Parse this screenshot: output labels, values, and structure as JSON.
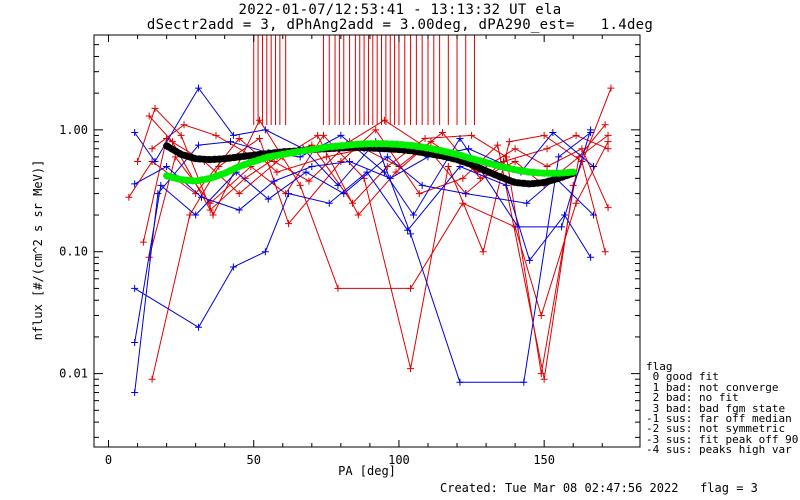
{
  "title_line1": "2022-01-07/12:53:41 - 13:13:32 UT ela",
  "title_line2": "dSectr2add = 3, dPhAng2add = 3.00deg, dPA290_est=   1.4deg",
  "footer": "Created: Tue Mar 08 02:47:56 2022   flag = 3",
  "legend": {
    "title": "flag",
    "items": [
      " 0 good fit",
      " 1 bad: not converge",
      " 2 bad: no fit",
      " 3 bad: bad fgm state",
      "-1 sus: far off median",
      "-2 sus: not symmetric",
      "-3 sus: fit peak off 90",
      "-4 sus: peaks high var"
    ]
  },
  "colors": {
    "red": "#e00000",
    "blue": "#0000e0",
    "green": "#00ee00",
    "black": "#000000"
  },
  "chart_data": {
    "type": "line",
    "xlabel": "PA [deg]",
    "ylabel": "nflux [#/(cm^2 s sr MeV)]",
    "xlim": [
      -5,
      183
    ],
    "ylim": [
      0.0025,
      6.0
    ],
    "yscale": "log",
    "x_ticks": [
      "0",
      "50",
      "100",
      "150"
    ],
    "x_tick_values": [
      0,
      50,
      100,
      150
    ],
    "y_ticks": [
      "0.01",
      "0.10",
      "1.00"
    ],
    "y_tick_values": [
      0.01,
      0.1,
      1.0
    ],
    "series": [
      {
        "color": "red",
        "x": [
          7,
          15,
          30,
          45,
          58,
          75,
          88,
          100,
          115,
          128,
          140,
          150,
          162,
          172
        ],
        "y": [
          0.28,
          0.55,
          0.3,
          0.85,
          0.45,
          0.6,
          0.7,
          0.5,
          0.95,
          0.4,
          0.55,
          0.35,
          0.6,
          0.9
        ]
      },
      {
        "color": "red",
        "x": [
          10,
          16,
          25,
          36,
          52,
          66,
          79,
          104,
          122,
          140,
          149,
          161,
          172
        ],
        "y": [
          0.55,
          1.5,
          0.9,
          0.2,
          1.2,
          0.35,
          0.05,
          0.05,
          0.25,
          0.16,
          0.03,
          0.25,
          0.8
        ]
      },
      {
        "color": "red",
        "x": [
          14,
          23,
          35,
          49,
          61,
          74,
          88,
          104,
          117,
          129,
          138,
          150,
          163,
          171
        ],
        "y": [
          0.09,
          0.6,
          0.25,
          0.5,
          0.3,
          0.9,
          0.4,
          0.011,
          0.5,
          0.1,
          0.8,
          0.9,
          0.55,
          0.1
        ]
      },
      {
        "color": "red",
        "x": [
          15,
          28,
          38,
          52,
          62,
          80,
          92,
          107,
          122,
          134,
          150,
          160,
          173
        ],
        "y": [
          0.009,
          0.2,
          0.5,
          0.85,
          0.17,
          0.55,
          1.0,
          0.3,
          0.4,
          0.75,
          0.009,
          0.35,
          2.2
        ]
      },
      {
        "color": "red",
        "x": [
          14,
          22,
          35,
          47,
          58,
          70,
          84,
          96,
          109,
          125,
          137,
          149,
          162,
          171
        ],
        "y": [
          1.3,
          0.8,
          0.22,
          0.4,
          0.6,
          0.75,
          0.25,
          0.5,
          0.85,
          0.9,
          0.6,
          0.01,
          0.6,
          1.1
        ]
      },
      {
        "color": "red",
        "x": [
          12,
          20,
          33,
          45,
          60,
          72,
          86,
          99,
          111,
          127,
          140,
          151,
          163,
          172
        ],
        "y": [
          0.12,
          0.85,
          0.55,
          0.3,
          0.6,
          0.9,
          0.2,
          0.45,
          0.8,
          0.45,
          0.7,
          0.5,
          0.7,
          0.23
        ]
      },
      {
        "color": "red",
        "x": [
          15,
          26,
          37,
          50,
          57,
          69,
          83,
          95,
          110,
          123,
          136,
          151,
          161,
          172
        ],
        "y": [
          0.7,
          1.1,
          0.9,
          0.6,
          0.55,
          0.38,
          0.8,
          1.2,
          0.7,
          0.3,
          0.55,
          0.7,
          0.9,
          0.7
        ]
      },
      {
        "color": "blue",
        "x": [
          9,
          31,
          43,
          54,
          62,
          76,
          89,
          103,
          121,
          137,
          145,
          157,
          166
        ],
        "y": [
          0.05,
          0.024,
          0.075,
          0.1,
          0.3,
          0.25,
          0.45,
          0.15,
          0.5,
          0.35,
          0.085,
          0.2,
          0.09
        ]
      },
      {
        "color": "blue",
        "x": [
          9,
          17,
          31,
          42,
          55,
          66,
          80,
          95,
          105,
          121,
          141,
          156,
          166
        ],
        "y": [
          0.007,
          0.3,
          0.75,
          0.8,
          0.65,
          0.6,
          0.9,
          0.45,
          0.2,
          0.85,
          0.16,
          0.16,
          1.0
        ]
      },
      {
        "color": "blue",
        "x": [
          9,
          16,
          31,
          43,
          54,
          67,
          79,
          92,
          104,
          121,
          143,
          155,
          166
        ],
        "y": [
          0.95,
          0.55,
          2.2,
          0.9,
          1.0,
          0.7,
          0.35,
          0.8,
          0.14,
          0.0085,
          0.0085,
          0.6,
          0.95
        ]
      },
      {
        "color": "blue",
        "x": [
          9,
          18,
          30,
          44,
          55,
          68,
          81,
          96,
          108,
          123,
          144,
          154,
          167
        ],
        "y": [
          0.018,
          0.35,
          0.2,
          0.45,
          0.27,
          0.45,
          0.3,
          0.6,
          0.35,
          0.3,
          0.25,
          0.4,
          0.2
        ]
      },
      {
        "color": "blue",
        "x": [
          9,
          20,
          32,
          45,
          57,
          70,
          83,
          97,
          110,
          124,
          142,
          153,
          167
        ],
        "y": [
          0.36,
          0.5,
          0.28,
          0.22,
          0.38,
          0.5,
          0.55,
          0.4,
          0.6,
          0.7,
          0.45,
          0.95,
          0.5
        ]
      }
    ],
    "fits": [
      {
        "color": "black",
        "x": [
          20,
          25,
          30,
          35,
          40,
          45,
          50,
          55,
          60,
          65,
          70,
          75,
          80,
          85,
          90,
          95,
          100,
          105,
          110,
          115,
          120,
          125,
          130,
          135,
          140,
          145,
          150,
          155,
          160
        ],
        "y": [
          0.74,
          0.63,
          0.58,
          0.57,
          0.58,
          0.6,
          0.62,
          0.64,
          0.66,
          0.67,
          0.69,
          0.7,
          0.71,
          0.72,
          0.71,
          0.7,
          0.69,
          0.67,
          0.64,
          0.61,
          0.57,
          0.52,
          0.46,
          0.41,
          0.37,
          0.36,
          0.37,
          0.4,
          0.44
        ]
      },
      {
        "color": "green",
        "x": [
          20,
          25,
          30,
          35,
          40,
          45,
          50,
          55,
          60,
          65,
          70,
          75,
          80,
          85,
          90,
          95,
          100,
          105,
          110,
          115,
          120,
          125,
          130,
          135,
          140,
          145,
          150,
          155,
          160
        ],
        "y": [
          0.42,
          0.39,
          0.38,
          0.4,
          0.44,
          0.5,
          0.55,
          0.6,
          0.63,
          0.66,
          0.69,
          0.72,
          0.74,
          0.76,
          0.77,
          0.77,
          0.76,
          0.74,
          0.71,
          0.67,
          0.63,
          0.58,
          0.54,
          0.5,
          0.47,
          0.45,
          0.44,
          0.44,
          0.45
        ]
      }
    ],
    "vertical_markers": {
      "color": "red",
      "x": [
        50,
        51.5,
        53,
        54.5,
        56,
        57.5,
        59,
        61,
        74,
        76,
        78,
        79.5,
        81,
        83,
        85,
        86.5,
        88,
        89.5,
        91,
        92.5,
        94,
        95.5,
        97,
        98.5,
        100,
        102,
        104,
        106,
        108,
        110,
        112,
        114,
        117,
        120,
        123,
        126
      ]
    }
  }
}
